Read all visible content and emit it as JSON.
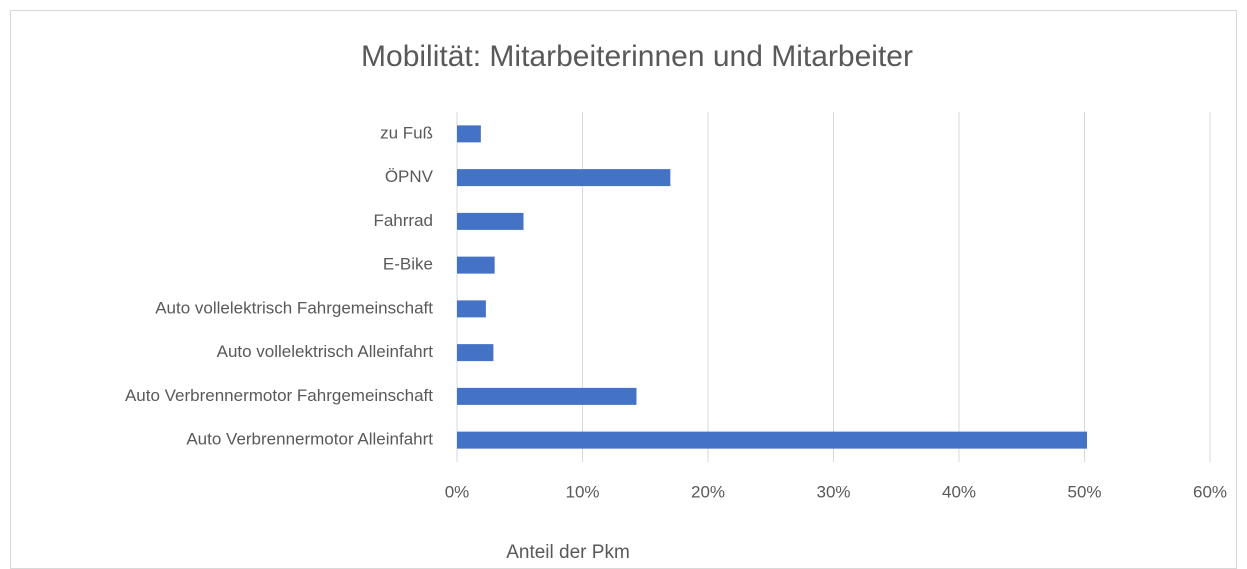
{
  "chart_data": {
    "type": "bar",
    "orientation": "horizontal",
    "title": "Mobilität: Mitarbeiterinnen und Mitarbeiter",
    "x_label": "Anteil der Pkm",
    "categories": [
      "zu Fuß",
      "ÖPNV",
      "Fahrrad",
      "E-Bike",
      "Auto vollelektrisch Fahrgemeinschaft",
      "Auto vollelektrisch Alleinfahrt",
      "Auto Verbrennermotor Fahrgemeinschaft",
      "Auto Verbrennermotor Alleinfahrt"
    ],
    "values": [
      1.9,
      17.0,
      5.3,
      3.0,
      2.3,
      2.9,
      14.3,
      50.2
    ],
    "color": "#4472c4",
    "xlim": [
      0,
      60
    ],
    "xticks": [
      {
        "value": 0,
        "label": "0%"
      },
      {
        "value": 10,
        "label": "10%"
      },
      {
        "value": 20,
        "label": "20%"
      },
      {
        "value": 30,
        "label": "30%"
      },
      {
        "value": 40,
        "label": "40%"
      },
      {
        "value": 50,
        "label": "50%"
      },
      {
        "value": 60,
        "label": "60%"
      }
    ],
    "grid": true
  }
}
